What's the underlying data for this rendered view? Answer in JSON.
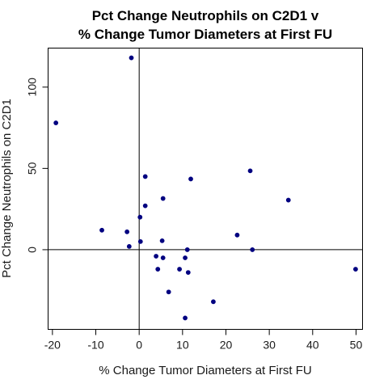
{
  "chart_data": {
    "type": "scatter",
    "title": [
      "Pct Change Neutrophils on C2D1 v",
      "% Change Tumor Diameters at First FU"
    ],
    "xlabel": "% Change Tumor Diameters at First FU",
    "ylabel": "Pct Change Neutrophils on C2D1",
    "xlim": [
      -21,
      51.5
    ],
    "ylim": [
      -49,
      124
    ],
    "xticks": [
      -20,
      -10,
      0,
      10,
      20,
      30,
      40,
      50
    ],
    "yticks": [
      0,
      50,
      100
    ],
    "ref_lines": {
      "x": 0,
      "y": 0
    },
    "grid": false,
    "legend": "none",
    "marker_color": "#000080",
    "points": [
      {
        "x": -1.8,
        "y": 118
      },
      {
        "x": -19.2,
        "y": 78
      },
      {
        "x": -8.6,
        "y": 12
      },
      {
        "x": -2.8,
        "y": 11
      },
      {
        "x": -2.3,
        "y": 2
      },
      {
        "x": 0.2,
        "y": 20
      },
      {
        "x": 0.3,
        "y": 5
      },
      {
        "x": 1.4,
        "y": 45
      },
      {
        "x": 1.4,
        "y": 27
      },
      {
        "x": 3.9,
        "y": -4
      },
      {
        "x": 4.3,
        "y": -12
      },
      {
        "x": 5.3,
        "y": 5.5
      },
      {
        "x": 5.5,
        "y": -5
      },
      {
        "x": 5.5,
        "y": 31.5
      },
      {
        "x": 6.8,
        "y": -26
      },
      {
        "x": 9.3,
        "y": -12
      },
      {
        "x": 10.6,
        "y": -5
      },
      {
        "x": 10.6,
        "y": -42
      },
      {
        "x": 11.1,
        "y": 0
      },
      {
        "x": 11.3,
        "y": -14
      },
      {
        "x": 11.9,
        "y": 43.5
      },
      {
        "x": 17.1,
        "y": -32
      },
      {
        "x": 22.6,
        "y": 9
      },
      {
        "x": 25.6,
        "y": 48.5
      },
      {
        "x": 26.1,
        "y": 0
      },
      {
        "x": 34.4,
        "y": 30.5
      },
      {
        "x": 49.9,
        "y": -12
      }
    ]
  }
}
